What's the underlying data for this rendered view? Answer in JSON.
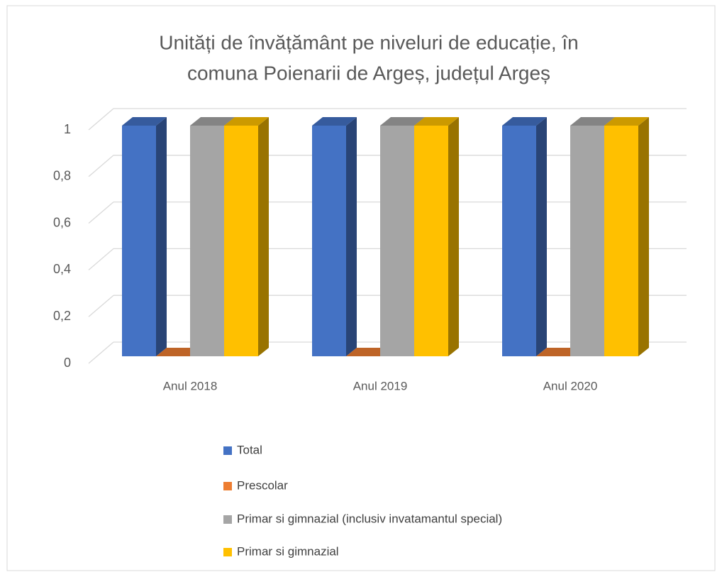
{
  "chart_data": {
    "type": "bar3d",
    "title": [
      "Unități de învățământ pe niveluri de educație, în",
      "comuna Poienarii de Argeș, județul Argeș"
    ],
    "categories": [
      "Anul 2018",
      "Anul 2019",
      "Anul 2020"
    ],
    "series": [
      {
        "name": "Total",
        "color": "#4472c4",
        "values": [
          1,
          1,
          1
        ]
      },
      {
        "name": "Prescolar",
        "color": "#ed7d31",
        "values": [
          0,
          0,
          0
        ]
      },
      {
        "name": "Primar si gimnazial (inclusiv invatamantul special)",
        "color": "#a5a5a5",
        "values": [
          1,
          1,
          1
        ]
      },
      {
        "name": "Primar si gimnazial",
        "color": "#ffc000",
        "values": [
          1,
          1,
          1
        ]
      }
    ],
    "ylim": [
      0,
      1
    ],
    "yticks": [
      0,
      {
        "value": 0.2,
        "label": "0,2"
      },
      {
        "value": 0.4,
        "label": "0,4"
      },
      {
        "value": 0.6,
        "label": "0,6"
      },
      {
        "value": 0.8,
        "label": "0,8"
      },
      1
    ],
    "grid": true,
    "legend": "bottom"
  }
}
